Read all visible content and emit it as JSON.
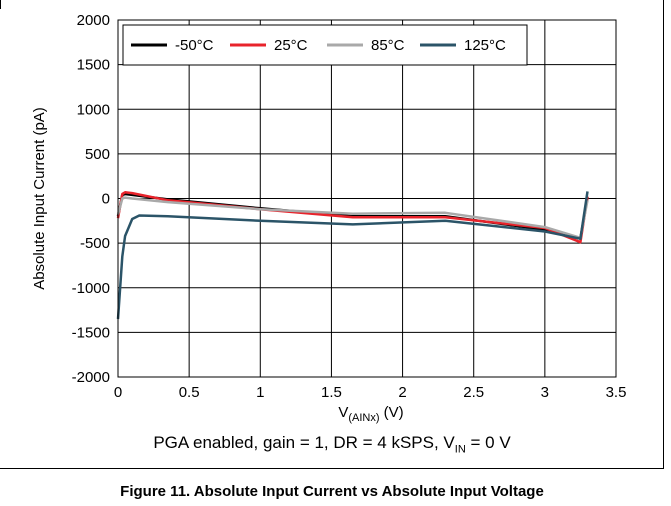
{
  "chart_data": {
    "type": "line",
    "xlabel_main": "V",
    "xlabel_sub": "(AINx)",
    "xlabel_unit": " (V)",
    "ylabel": "Absolute Input Current (pA)",
    "xlim": [
      0,
      3.5
    ],
    "ylim": [
      -2000,
      2000
    ],
    "xticks": [
      "0",
      "0.5",
      "1",
      "1.5",
      "2",
      "2.5",
      "3",
      "3.5"
    ],
    "yticks": [
      "2000",
      "1500",
      "1000",
      "500",
      "0",
      "-500",
      "-1000",
      "-1500",
      "-2000"
    ],
    "grid": true,
    "legend_position": "top-left",
    "series": [
      {
        "name": "-50°C",
        "color": "#000000",
        "points": [
          [
            0,
            -200
          ],
          [
            0.03,
            40
          ],
          [
            0.05,
            50
          ],
          [
            0.1,
            40
          ],
          [
            0.35,
            -10
          ],
          [
            1,
            -110
          ],
          [
            1.65,
            -200
          ],
          [
            2.3,
            -200
          ],
          [
            3,
            -350
          ],
          [
            3.25,
            -450
          ],
          [
            3.3,
            20
          ]
        ]
      },
      {
        "name": "25°C",
        "color": "#e8232b",
        "points": [
          [
            0,
            -220
          ],
          [
            0.03,
            50
          ],
          [
            0.05,
            70
          ],
          [
            0.1,
            60
          ],
          [
            0.35,
            -20
          ],
          [
            1,
            -120
          ],
          [
            1.65,
            -210
          ],
          [
            2.3,
            -210
          ],
          [
            3,
            -330
          ],
          [
            3.25,
            -490
          ],
          [
            3.3,
            20
          ]
        ]
      },
      {
        "name": "85°C",
        "color": "#a9a9a9",
        "points": [
          [
            0,
            -180
          ],
          [
            0.03,
            0
          ],
          [
            0.05,
            10
          ],
          [
            0.1,
            0
          ],
          [
            0.35,
            -40
          ],
          [
            1,
            -120
          ],
          [
            1.65,
            -170
          ],
          [
            2.3,
            -160
          ],
          [
            3,
            -320
          ],
          [
            3.25,
            -440
          ],
          [
            3.3,
            -20
          ]
        ]
      },
      {
        "name": "125°C",
        "color": "#2b5468",
        "points": [
          [
            0,
            -1350
          ],
          [
            0.03,
            -650
          ],
          [
            0.05,
            -420
          ],
          [
            0.1,
            -230
          ],
          [
            0.15,
            -190
          ],
          [
            0.35,
            -200
          ],
          [
            1,
            -250
          ],
          [
            1.65,
            -290
          ],
          [
            2.3,
            -250
          ],
          [
            3,
            -370
          ],
          [
            3.25,
            -450
          ],
          [
            3.3,
            80
          ]
        ]
      }
    ]
  },
  "caption": {
    "prefix": "PGA enabled, gain = 1, DR = 4 kSPS, V",
    "sub": "IN",
    "suffix": " = 0 V"
  },
  "figure_title": "Figure 11. Absolute Input Current vs Absolute Input Voltage"
}
